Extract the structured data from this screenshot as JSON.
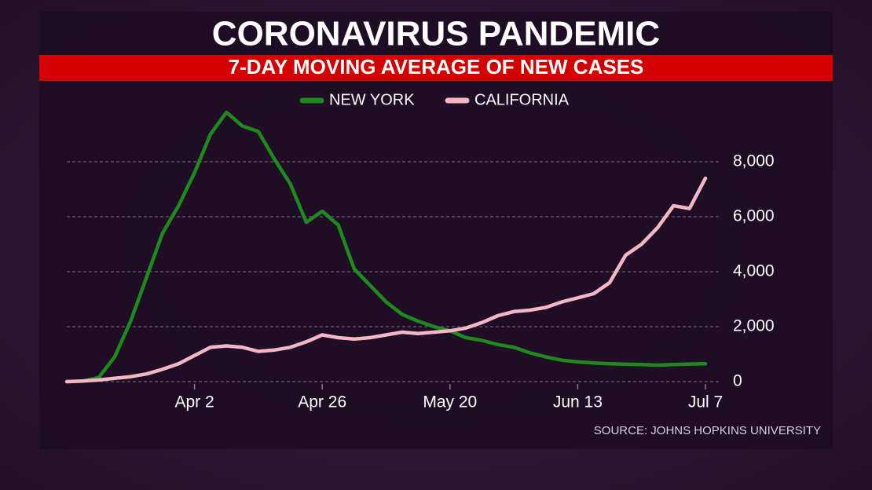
{
  "chart_data": {
    "type": "line",
    "title": "CORONAVIRUS PANDEMIC",
    "subtitle": "7-DAY MOVING AVERAGE OF NEW CASES",
    "source": "SOURCE: JOHNS HOPKINS UNIVERSITY",
    "x": [
      "Mar 9",
      "Mar 12",
      "Mar 15",
      "Mar 18",
      "Mar 21",
      "Mar 24",
      "Mar 27",
      "Mar 30",
      "Apr 2",
      "Apr 5",
      "Apr 8",
      "Apr 11",
      "Apr 14",
      "Apr 17",
      "Apr 20",
      "Apr 23",
      "Apr 26",
      "Apr 29",
      "May 2",
      "May 5",
      "May 8",
      "May 11",
      "May 14",
      "May 17",
      "May 20",
      "May 23",
      "May 26",
      "May 29",
      "Jun 1",
      "Jun 4",
      "Jun 7",
      "Jun 10",
      "Jun 13",
      "Jun 16",
      "Jun 19",
      "Jun 22",
      "Jun 25",
      "Jun 28",
      "Jul 1",
      "Jul 4",
      "Jul 7"
    ],
    "series": [
      {
        "name": "NEW YORK",
        "color": "#1e8a1e",
        "values": [
          0,
          20,
          150,
          900,
          2200,
          3800,
          5400,
          6400,
          7600,
          9000,
          9800,
          9300,
          9100,
          8100,
          7200,
          5800,
          6200,
          5700,
          4100,
          3500,
          2900,
          2450,
          2200,
          2000,
          1850,
          1600,
          1500,
          1350,
          1250,
          1050,
          900,
          780,
          720,
          680,
          650,
          630,
          620,
          600,
          620,
          640,
          650
        ]
      },
      {
        "name": "CALIFORNIA",
        "color": "#f4b8c4",
        "values": [
          0,
          20,
          60,
          120,
          180,
          280,
          450,
          650,
          950,
          1250,
          1300,
          1250,
          1100,
          1150,
          1250,
          1450,
          1700,
          1600,
          1550,
          1600,
          1700,
          1800,
          1750,
          1800,
          1850,
          1950,
          2150,
          2400,
          2550,
          2600,
          2700,
          2900,
          3050,
          3200,
          3600,
          4600,
          5000,
          5600,
          6400,
          6300,
          7400
        ]
      }
    ],
    "xlim": [
      "Mar 9",
      "Jul 7"
    ],
    "xticks": [
      "Apr 2",
      "Apr 26",
      "May 20",
      "Jun 13",
      "Jul 7"
    ],
    "ylim": [
      0,
      10000
    ],
    "yticks": [
      0,
      {
        "value": 2000,
        "label": "2,000"
      },
      {
        "value": 4000,
        "label": "4,000"
      },
      {
        "value": 6000,
        "label": "6,000"
      },
      {
        "value": 8000,
        "label": "8,000"
      }
    ],
    "grid": true,
    "legend": "top"
  }
}
